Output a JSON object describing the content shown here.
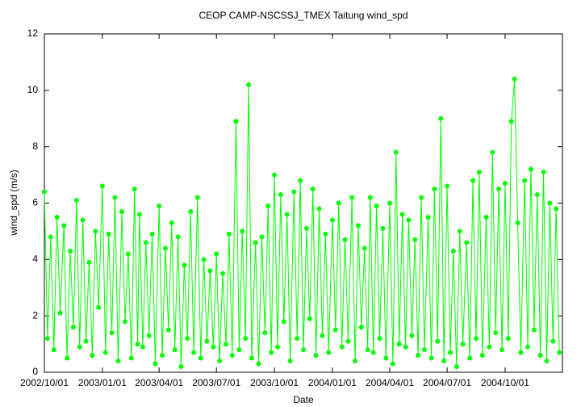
{
  "chart_data": {
    "type": "line",
    "title": "CEOP CAMP-NSCSSJ_TMEX Taitung  wind_spd",
    "x_label": "Date",
    "y_label": "wind_spd (m/s)",
    "xlim": [
      "2002/10/01",
      "2004/12/31"
    ],
    "xticks": [
      "2002/10/01",
      "2003/01/01",
      "2003/04/01",
      "2003/07/01",
      "2003/10/01",
      "2004/01/01",
      "2004/04/01",
      "2004/07/01",
      "2004/10/01"
    ],
    "ylim": [
      0,
      12
    ],
    "yticks": [
      0,
      2,
      4,
      6,
      8,
      10,
      12
    ],
    "grid": false,
    "series": [
      {
        "name": "wind_spd",
        "color": "#00ff00",
        "x": [
          "2002/10/01",
          "2002/10/06",
          "2002/10/11",
          "2002/10/16",
          "2002/10/21",
          "2002/10/26",
          "2002/11/01",
          "2002/11/06",
          "2002/11/11",
          "2002/11/16",
          "2002/11/21",
          "2002/11/26",
          "2002/12/01",
          "2002/12/06",
          "2002/12/11",
          "2002/12/16",
          "2002/12/21",
          "2002/12/26",
          "2003/01/01",
          "2003/01/06",
          "2003/01/11",
          "2003/01/16",
          "2003/01/21",
          "2003/01/26",
          "2003/02/01",
          "2003/02/06",
          "2003/02/11",
          "2003/02/16",
          "2003/02/21",
          "2003/02/26",
          "2003/03/01",
          "2003/03/06",
          "2003/03/11",
          "2003/03/16",
          "2003/03/21",
          "2003/03/26",
          "2003/04/01",
          "2003/04/06",
          "2003/04/11",
          "2003/04/16",
          "2003/04/21",
          "2003/04/26",
          "2003/05/01",
          "2003/05/06",
          "2003/05/11",
          "2003/05/16",
          "2003/05/21",
          "2003/05/26",
          "2003/06/01",
          "2003/06/06",
          "2003/06/11",
          "2003/06/16",
          "2003/06/21",
          "2003/06/26",
          "2003/07/01",
          "2003/07/06",
          "2003/07/11",
          "2003/07/16",
          "2003/07/21",
          "2003/07/26",
          "2003/08/01",
          "2003/08/06",
          "2003/08/11",
          "2003/08/16",
          "2003/08/21",
          "2003/08/26",
          "2003/09/01",
          "2003/09/06",
          "2003/09/11",
          "2003/09/16",
          "2003/09/21",
          "2003/09/26",
          "2003/10/01",
          "2003/10/06",
          "2003/10/11",
          "2003/10/16",
          "2003/10/21",
          "2003/10/26",
          "2003/11/01",
          "2003/11/06",
          "2003/11/11",
          "2003/11/16",
          "2003/11/21",
          "2003/11/26",
          "2003/12/01",
          "2003/12/06",
          "2003/12/11",
          "2003/12/16",
          "2003/12/21",
          "2003/12/26",
          "2004/01/01",
          "2004/01/06",
          "2004/01/11",
          "2004/01/16",
          "2004/01/21",
          "2004/01/26",
          "2004/02/01",
          "2004/02/06",
          "2004/02/11",
          "2004/02/16",
          "2004/02/21",
          "2004/02/26",
          "2004/03/01",
          "2004/03/06",
          "2004/03/11",
          "2004/03/16",
          "2004/03/21",
          "2004/03/26",
          "2004/04/01",
          "2004/04/06",
          "2004/04/11",
          "2004/04/16",
          "2004/04/21",
          "2004/04/26",
          "2004/05/01",
          "2004/05/06",
          "2004/05/11",
          "2004/05/16",
          "2004/05/21",
          "2004/05/26",
          "2004/06/01",
          "2004/06/06",
          "2004/06/11",
          "2004/06/16",
          "2004/06/21",
          "2004/06/26",
          "2004/07/01",
          "2004/07/06",
          "2004/07/11",
          "2004/07/16",
          "2004/07/21",
          "2004/07/26",
          "2004/08/01",
          "2004/08/06",
          "2004/08/11",
          "2004/08/16",
          "2004/08/21",
          "2004/08/26",
          "2004/09/01",
          "2004/09/06",
          "2004/09/11",
          "2004/09/16",
          "2004/09/21",
          "2004/09/26",
          "2004/10/01",
          "2004/10/06",
          "2004/10/11",
          "2004/10/16",
          "2004/10/21",
          "2004/10/26",
          "2004/11/01",
          "2004/11/06",
          "2004/11/11",
          "2004/11/16",
          "2004/11/21",
          "2004/11/26",
          "2004/12/01",
          "2004/12/06",
          "2004/12/11",
          "2004/12/16",
          "2004/12/21",
          "2004/12/26"
        ],
        "values": [
          6.4,
          1.2,
          4.8,
          0.8,
          5.5,
          2.1,
          5.2,
          0.5,
          4.3,
          1.6,
          6.1,
          0.9,
          5.4,
          1.1,
          3.9,
          0.6,
          5.0,
          2.3,
          6.6,
          0.7,
          4.9,
          1.4,
          6.2,
          0.4,
          5.7,
          1.8,
          4.2,
          0.5,
          6.5,
          1.0,
          5.6,
          0.9,
          4.6,
          1.3,
          4.9,
          0.3,
          5.9,
          0.6,
          4.4,
          1.5,
          5.3,
          0.8,
          4.8,
          0.2,
          3.8,
          1.2,
          5.7,
          0.7,
          6.2,
          0.5,
          4.0,
          1.1,
          3.6,
          0.9,
          4.2,
          0.4,
          3.5,
          1.0,
          4.9,
          0.6,
          8.9,
          0.8,
          5.0,
          1.2,
          10.2,
          0.5,
          4.6,
          0.3,
          4.8,
          1.4,
          5.9,
          0.7,
          7.0,
          0.9,
          6.3,
          1.8,
          5.6,
          0.4,
          6.4,
          1.2,
          6.8,
          0.8,
          5.1,
          1.9,
          6.5,
          0.6,
          5.8,
          1.3,
          4.9,
          0.7,
          5.4,
          1.5,
          6.0,
          0.9,
          4.7,
          1.1,
          6.2,
          0.4,
          5.2,
          1.6,
          4.4,
          0.8,
          6.2,
          0.7,
          5.9,
          1.2,
          5.1,
          0.5,
          6.0,
          0.3,
          7.8,
          1.0,
          5.6,
          0.9,
          5.4,
          1.3,
          4.7,
          0.6,
          6.2,
          0.8,
          5.5,
          0.5,
          6.5,
          1.1,
          9.0,
          0.4,
          6.6,
          0.7,
          4.3,
          0.2,
          5.0,
          1.0,
          4.6,
          0.5,
          6.8,
          1.2,
          7.1,
          0.6,
          5.5,
          0.9,
          7.8,
          1.4,
          6.5,
          0.8,
          6.7,
          1.2,
          8.9,
          10.4,
          5.3,
          0.7,
          6.8,
          0.9,
          7.2,
          1.5,
          6.3,
          0.6,
          7.1,
          0.4,
          6.0,
          1.1,
          5.8,
          0.7
        ]
      }
    ]
  }
}
